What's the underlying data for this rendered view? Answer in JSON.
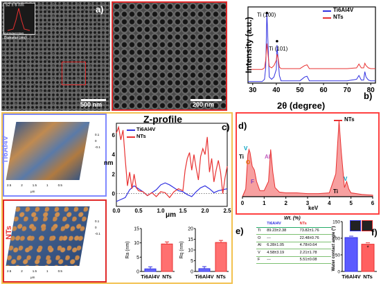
{
  "colors": {
    "ti6al4v": "#3030e0",
    "nts": "#e83030",
    "frame_orange": "#f2c14e",
    "frame_blue": "#7f88ff",
    "frame_red": "#e02828",
    "panel_red": "#ff4040"
  },
  "panel_a": {
    "letter": "a)",
    "inset_title": "52 ± 6 nm",
    "inset_xticks": [
      "30",
      "40",
      "50",
      "60",
      "70",
      "80"
    ],
    "inset_xlabel": "Diameter (nm)",
    "scalebar1": "500 nm",
    "scalebar2": "200 nm"
  },
  "panel_b": {
    "letter": "b)",
    "ylabel": "Intensity (a.u.)",
    "xlabel": "2θ (degree)",
    "xticks": [
      "30",
      "40",
      "50",
      "60",
      "70",
      "80"
    ],
    "legend": [
      "Ti6Al4V",
      "NTs"
    ],
    "peak_labels": [
      "Ti (100)",
      "Ti (101)"
    ]
  },
  "panel_c": {
    "letter": "c)",
    "title": "Z-profile",
    "legend": [
      "Ti6Al4V",
      "NTs"
    ],
    "ylabel": "nm",
    "xlabel": "μm",
    "yticks": [
      "0",
      "2",
      "4",
      "6"
    ],
    "xticks": [
      "0.0",
      "0.5",
      "1.0",
      "1.5",
      "2.0",
      "2.5"
    ],
    "sample_labels": [
      "Ti6Al4V",
      "NTs"
    ],
    "afm_z1": [
      "0.1",
      "0",
      "-0.1"
    ],
    "afm_z2": [
      "0.1",
      "0",
      "-0.1"
    ],
    "afm_unit": "μm",
    "afm_x": [
      "2.5",
      "2",
      "1.5",
      "1",
      "0.5"
    ],
    "ra_label": "Ra (nm)",
    "ra_ticks": [
      "0",
      "5",
      "10",
      "15"
    ],
    "rq_label": "Rq (nm)",
    "rq_ticks": [
      "0",
      "5",
      "10",
      "15",
      "20"
    ],
    "bar_cats": [
      "Ti6Al4V",
      "NTs"
    ]
  },
  "panel_d": {
    "letter": "d)",
    "legend": "NTs",
    "xlabel": "keV",
    "xticks": [
      "0",
      "1",
      "2",
      "3",
      "4",
      "5",
      "6"
    ],
    "element_labels": [
      "V",
      "Ti",
      "O",
      "Al",
      "F",
      "Ti",
      "V"
    ]
  },
  "panel_e": {
    "letter": "e)",
    "caption": "Wt. (%)",
    "col_heads": [
      "Ti6Al4V",
      "NTs"
    ],
    "rows": [
      {
        "el": "Ti",
        "a": "89.23±2.38",
        "b": "73.82±1.76"
      },
      {
        "el": "O",
        "a": "---",
        "b": "22.48±0.76"
      },
      {
        "el": "Al",
        "a": "6.28±1.05",
        "b": "4.78±0.64"
      },
      {
        "el": "V",
        "a": "4.58±3.19",
        "b": "2.21±1.78"
      },
      {
        "el": "F",
        "a": "---",
        "b": "5.51±0.08"
      }
    ]
  },
  "panel_f": {
    "letter": "f)",
    "ylabel": "Water contact angle (°)",
    "yticks": [
      "0",
      "50",
      "100",
      "150"
    ],
    "bar_cats": [
      "Ti6Al4V",
      "NTs"
    ],
    "star": "*"
  },
  "chart_data": [
    {
      "type": "line",
      "title": "",
      "xlabel": "2θ (degree)",
      "ylabel": "Intensity (a.u.)",
      "xlim": [
        28,
        82
      ],
      "series": [
        {
          "name": "Ti6Al4V",
          "x": [
            28,
            34,
            35,
            35.5,
            36,
            37,
            38,
            39,
            40,
            40.3,
            40.8,
            41.3,
            42,
            50,
            52,
            53,
            54,
            60,
            70,
            74,
            75,
            76,
            77,
            77.5,
            78,
            79,
            80,
            82
          ],
          "y": [
            0.02,
            0.02,
            0.05,
            0.2,
            0.92,
            0.08,
            0.05,
            0.08,
            0.18,
            0.5,
            0.3,
            0.1,
            0.03,
            0.03,
            0.08,
            0.09,
            0.03,
            0.03,
            0.03,
            0.05,
            0.1,
            0.04,
            0.04,
            0.15,
            0.08,
            0.04,
            0.03,
            0.03
          ]
        },
        {
          "name": "NTs",
          "x": [
            28,
            34,
            35,
            35.5,
            36,
            37,
            38,
            39,
            40,
            40.3,
            40.8,
            41.3,
            42,
            50,
            52,
            53,
            54,
            60,
            70,
            74,
            75,
            76,
            77,
            77.5,
            78,
            79,
            80,
            82
          ],
          "y": [
            0.18,
            0.18,
            0.2,
            0.3,
            0.52,
            0.22,
            0.2,
            0.23,
            0.3,
            0.38,
            0.32,
            0.21,
            0.19,
            0.19,
            0.23,
            0.24,
            0.19,
            0.19,
            0.19,
            0.2,
            0.25,
            0.2,
            0.2,
            0.26,
            0.23,
            0.2,
            0.19,
            0.19
          ]
        }
      ]
    },
    {
      "type": "line",
      "title": "Z-profile",
      "xlabel": "μm",
      "ylabel": "nm",
      "xlim": [
        0,
        2.5
      ],
      "ylim": [
        -1.3,
        7.2
      ],
      "series": [
        {
          "name": "Ti6Al4V",
          "x": [
            0,
            0.1,
            0.2,
            0.3,
            0.4,
            0.5,
            0.6,
            0.7,
            0.8,
            0.9,
            1.0,
            1.1,
            1.2,
            1.3,
            1.4,
            1.5,
            1.6,
            1.7,
            1.8,
            1.9,
            2.0,
            2.1,
            2.2,
            2.3,
            2.4,
            2.5
          ],
          "y": [
            -0.8,
            -0.6,
            -0.4,
            0.4,
            0.8,
            0.5,
            0.2,
            -0.2,
            0.1,
            0.4,
            0.9,
            1.1,
            0.9,
            0.6,
            0.3,
            0.2,
            -0.1,
            -0.3,
            0.2,
            0.6,
            0.8,
            0.5,
            0.1,
            0.3,
            0.4,
            0.5
          ]
        },
        {
          "name": "NTs",
          "x": [
            0,
            0.05,
            0.1,
            0.15,
            0.2,
            0.25,
            0.3,
            0.35,
            0.4,
            0.45,
            0.5,
            0.6,
            0.7,
            0.8,
            0.9,
            1.0,
            1.1,
            1.2,
            1.3,
            1.4,
            1.5,
            1.55,
            1.6,
            1.65,
            1.7,
            1.75,
            1.8,
            1.85,
            1.9,
            1.95,
            2.0,
            2.05,
            2.1,
            2.15,
            2.2,
            2.25,
            2.3,
            2.35,
            2.4,
            2.45,
            2.5
          ],
          "y": [
            6.2,
            6.8,
            5.5,
            6.5,
            3.5,
            0.8,
            2.2,
            0.5,
            2.0,
            0.6,
            0.3,
            0.2,
            -0.2,
            0.1,
            -0.3,
            0.2,
            0.1,
            -0.4,
            0.2,
            0.5,
            0.3,
            2.4,
            3.6,
            4.2,
            2.4,
            4.0,
            2.6,
            1.4,
            3.8,
            4.6,
            4.0,
            5.8,
            2.2,
            3.6,
            1.2,
            2.4,
            3.4,
            2.2,
            0.0,
            1.6,
            2.8
          ]
        }
      ]
    },
    {
      "type": "bar",
      "title": "",
      "ylabel": "Ra (nm)",
      "categories": [
        "Ti6Al4V",
        "NTs"
      ],
      "values": [
        0.9,
        9.6
      ],
      "ylim": [
        0,
        15
      ]
    },
    {
      "type": "bar",
      "title": "",
      "ylabel": "Rq (nm)",
      "categories": [
        "Ti6Al4V",
        "NTs"
      ],
      "values": [
        1.3,
        13.5
      ],
      "ylim": [
        0,
        20
      ]
    },
    {
      "type": "area",
      "title": "",
      "xlabel": "keV",
      "xlim": [
        0,
        6
      ],
      "series": [
        {
          "name": "NTs",
          "x": [
            0,
            0.15,
            0.25,
            0.3,
            0.35,
            0.45,
            0.55,
            0.65,
            0.8,
            1.0,
            1.2,
            1.3,
            1.4,
            1.5,
            1.7,
            2.0,
            2.5,
            3.0,
            3.5,
            4.0,
            4.3,
            4.45,
            4.55,
            4.7,
            4.8,
            4.9,
            5.0,
            5.5,
            6.0
          ],
          "y": [
            0,
            0.1,
            0.55,
            0.62,
            0.58,
            0.4,
            0.35,
            0.2,
            0.08,
            0.08,
            0.2,
            0.62,
            0.32,
            0.12,
            0.06,
            0.05,
            0.05,
            0.04,
            0.04,
            0.05,
            0.3,
            1.0,
            0.6,
            0.12,
            0.2,
            0.1,
            0.05,
            0.03,
            0.02
          ]
        }
      ]
    },
    {
      "type": "bar",
      "title": "",
      "ylabel": "Water contact angle (°)",
      "categories": [
        "Ti6Al4V",
        "NTs"
      ],
      "values": [
        102,
        82
      ],
      "ylim": [
        0,
        150
      ]
    }
  ]
}
